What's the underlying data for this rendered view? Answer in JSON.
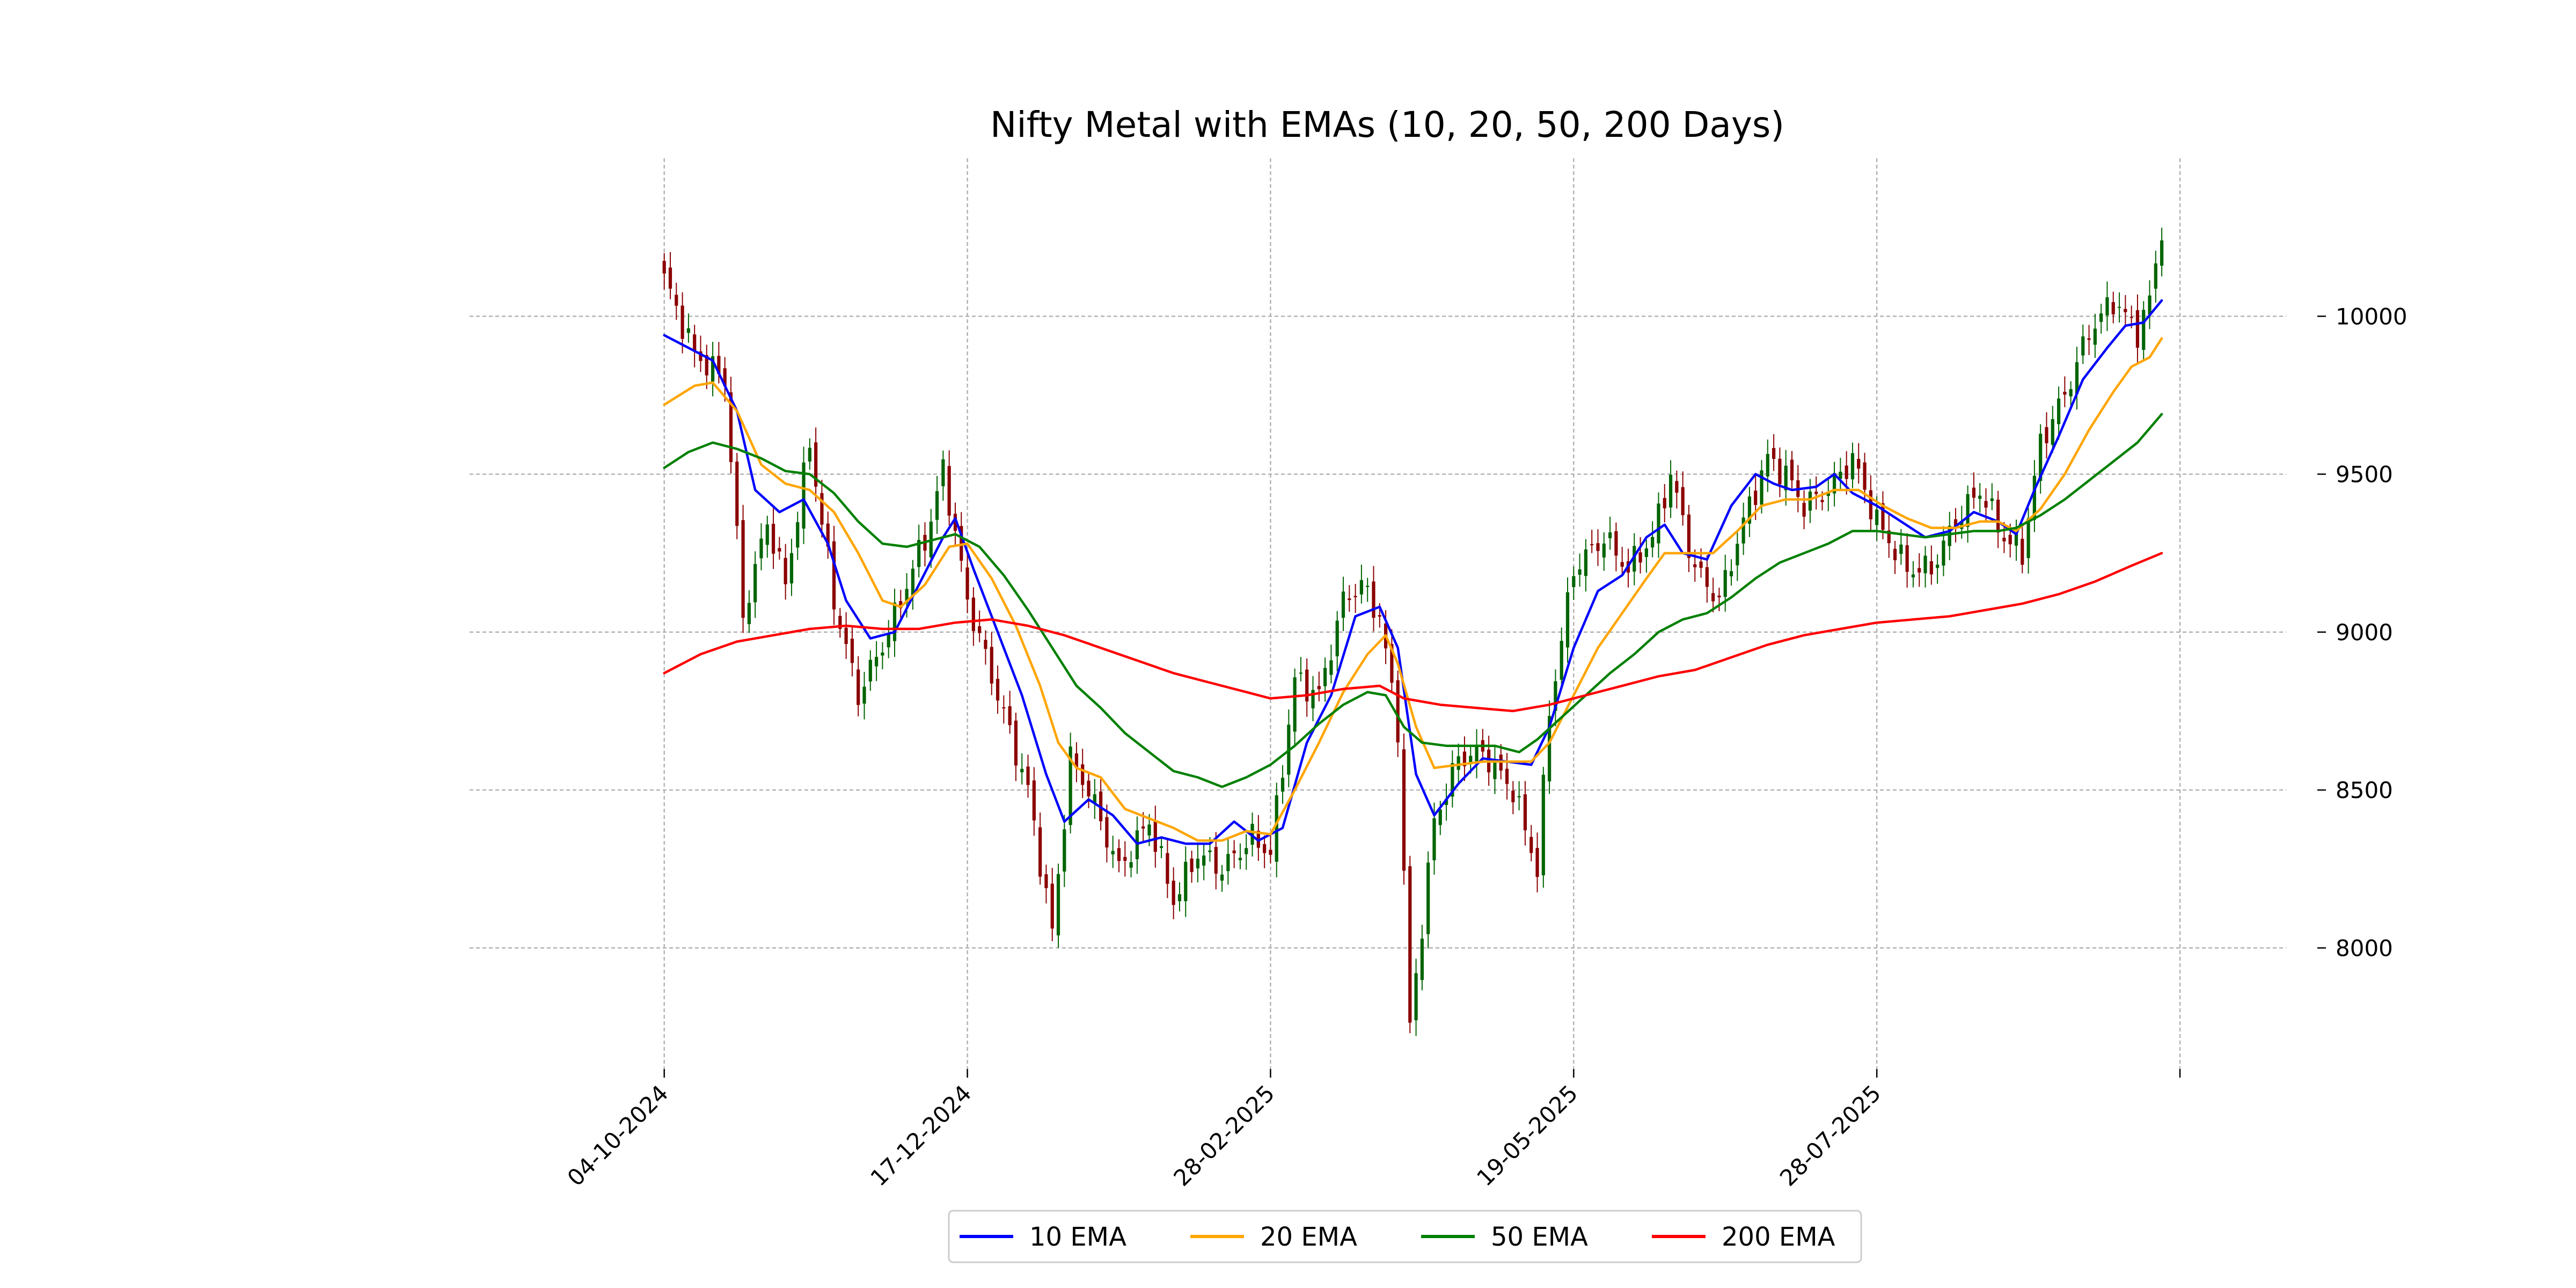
{
  "chart_data": {
    "type": "candlestick",
    "title": "Nifty Metal with EMAs (10, 20, 50, 200 Days)",
    "xlabel": "",
    "ylabel": "",
    "ylim": [
      7620,
      10500
    ],
    "y_ticks": [
      8000,
      8500,
      9000,
      9500,
      10000
    ],
    "y_tick_labels": [
      "8000",
      "8500",
      "9000",
      "9500",
      "10000"
    ],
    "x_ticks": [
      {
        "index": 0,
        "label": "04-10-2024"
      },
      {
        "index": 50,
        "label": "17-12-2024"
      },
      {
        "index": 100,
        "label": "28-02-2025"
      },
      {
        "index": 150,
        "label": "19-05-2025"
      },
      {
        "index": 200,
        "label": "28-07-2025"
      },
      {
        "index": 250,
        "label": ""
      }
    ],
    "grid": true,
    "legend_position": "bottom-center",
    "candle_colors": {
      "up": "#006400",
      "down": "#8b0000"
    },
    "candle_anchors": [
      [
        0,
        10120
      ],
      [
        5,
        9880
      ],
      [
        10,
        9800
      ],
      [
        13,
        9050
      ],
      [
        17,
        9350
      ],
      [
        20,
        9150
      ],
      [
        24,
        9600
      ],
      [
        28,
        9100
      ],
      [
        32,
        8800
      ],
      [
        37,
        9000
      ],
      [
        40,
        9150
      ],
      [
        44,
        9350
      ],
      [
        46,
        9520
      ],
      [
        50,
        9100
      ],
      [
        55,
        8800
      ],
      [
        60,
        8500
      ],
      [
        64,
        8050
      ],
      [
        67,
        8600
      ],
      [
        70,
        8500
      ],
      [
        75,
        8250
      ],
      [
        80,
        8400
      ],
      [
        84,
        8150
      ],
      [
        88,
        8300
      ],
      [
        92,
        8250
      ],
      [
        97,
        8350
      ],
      [
        100,
        8300
      ],
      [
        104,
        8850
      ],
      [
        108,
        8800
      ],
      [
        112,
        9100
      ],
      [
        115,
        9150
      ],
      [
        118,
        9050
      ],
      [
        121,
        8700
      ],
      [
        123,
        7750
      ],
      [
        127,
        8400
      ],
      [
        131,
        8600
      ],
      [
        135,
        8620
      ],
      [
        140,
        8500
      ],
      [
        144,
        8250
      ],
      [
        146,
        8750
      ],
      [
        150,
        9200
      ],
      [
        155,
        9300
      ],
      [
        159,
        9200
      ],
      [
        163,
        9300
      ],
      [
        166,
        9500
      ],
      [
        170,
        9200
      ],
      [
        174,
        9100
      ],
      [
        178,
        9350
      ],
      [
        182,
        9550
      ],
      [
        185,
        9500
      ],
      [
        188,
        9400
      ],
      [
        192,
        9450
      ],
      [
        196,
        9550
      ],
      [
        200,
        9350
      ],
      [
        205,
        9200
      ],
      [
        209,
        9200
      ],
      [
        213,
        9350
      ],
      [
        217,
        9450
      ],
      [
        221,
        9300
      ],
      [
        224,
        9250
      ],
      [
        227,
        9600
      ],
      [
        231,
        9750
      ],
      [
        235,
        9950
      ],
      [
        239,
        10050
      ],
      [
        243,
        9950
      ],
      [
        245,
        10050
      ],
      [
        247,
        10280
      ]
    ],
    "series": [
      {
        "name": "10 EMA",
        "color": "#0000ff",
        "points": [
          [
            0,
            9940
          ],
          [
            5,
            9890
          ],
          [
            8,
            9860
          ],
          [
            12,
            9700
          ],
          [
            15,
            9450
          ],
          [
            19,
            9380
          ],
          [
            23,
            9420
          ],
          [
            27,
            9280
          ],
          [
            30,
            9100
          ],
          [
            34,
            8980
          ],
          [
            38,
            9000
          ],
          [
            42,
            9150
          ],
          [
            46,
            9300
          ],
          [
            48,
            9360
          ],
          [
            51,
            9200
          ],
          [
            55,
            9000
          ],
          [
            59,
            8800
          ],
          [
            63,
            8550
          ],
          [
            66,
            8400
          ],
          [
            70,
            8470
          ],
          [
            74,
            8420
          ],
          [
            78,
            8330
          ],
          [
            82,
            8350
          ],
          [
            86,
            8330
          ],
          [
            90,
            8330
          ],
          [
            94,
            8400
          ],
          [
            98,
            8340
          ],
          [
            102,
            8380
          ],
          [
            106,
            8650
          ],
          [
            110,
            8800
          ],
          [
            114,
            9050
          ],
          [
            118,
            9080
          ],
          [
            121,
            8950
          ],
          [
            124,
            8550
          ],
          [
            127,
            8420
          ],
          [
            131,
            8520
          ],
          [
            135,
            8600
          ],
          [
            139,
            8590
          ],
          [
            143,
            8580
          ],
          [
            146,
            8700
          ],
          [
            150,
            8950
          ],
          [
            154,
            9130
          ],
          [
            158,
            9180
          ],
          [
            162,
            9300
          ],
          [
            165,
            9340
          ],
          [
            168,
            9250
          ],
          [
            172,
            9230
          ],
          [
            176,
            9400
          ],
          [
            180,
            9500
          ],
          [
            183,
            9470
          ],
          [
            186,
            9450
          ],
          [
            190,
            9460
          ],
          [
            193,
            9500
          ],
          [
            196,
            9440
          ],
          [
            200,
            9400
          ],
          [
            204,
            9350
          ],
          [
            208,
            9300
          ],
          [
            212,
            9320
          ],
          [
            216,
            9380
          ],
          [
            220,
            9350
          ],
          [
            223,
            9310
          ],
          [
            226,
            9450
          ],
          [
            230,
            9620
          ],
          [
            234,
            9800
          ],
          [
            238,
            9900
          ],
          [
            241,
            9970
          ],
          [
            244,
            9980
          ],
          [
            247,
            10050
          ]
        ]
      },
      {
        "name": "20 EMA",
        "color": "#ffa500",
        "points": [
          [
            0,
            9720
          ],
          [
            5,
            9780
          ],
          [
            8,
            9790
          ],
          [
            12,
            9700
          ],
          [
            16,
            9530
          ],
          [
            20,
            9470
          ],
          [
            24,
            9450
          ],
          [
            28,
            9380
          ],
          [
            32,
            9250
          ],
          [
            36,
            9100
          ],
          [
            39,
            9080
          ],
          [
            43,
            9150
          ],
          [
            47,
            9270
          ],
          [
            50,
            9280
          ],
          [
            54,
            9170
          ],
          [
            58,
            9020
          ],
          [
            62,
            8830
          ],
          [
            65,
            8650
          ],
          [
            68,
            8570
          ],
          [
            72,
            8540
          ],
          [
            76,
            8440
          ],
          [
            80,
            8410
          ],
          [
            84,
            8380
          ],
          [
            88,
            8340
          ],
          [
            92,
            8340
          ],
          [
            96,
            8370
          ],
          [
            100,
            8360
          ],
          [
            104,
            8500
          ],
          [
            108,
            8650
          ],
          [
            112,
            8810
          ],
          [
            116,
            8930
          ],
          [
            119,
            8990
          ],
          [
            121,
            8900
          ],
          [
            124,
            8700
          ],
          [
            127,
            8570
          ],
          [
            131,
            8580
          ],
          [
            135,
            8590
          ],
          [
            139,
            8590
          ],
          [
            143,
            8590
          ],
          [
            146,
            8650
          ],
          [
            150,
            8800
          ],
          [
            154,
            8950
          ],
          [
            158,
            9060
          ],
          [
            162,
            9170
          ],
          [
            165,
            9250
          ],
          [
            169,
            9250
          ],
          [
            173,
            9250
          ],
          [
            177,
            9320
          ],
          [
            181,
            9400
          ],
          [
            185,
            9420
          ],
          [
            189,
            9420
          ],
          [
            193,
            9450
          ],
          [
            197,
            9450
          ],
          [
            201,
            9400
          ],
          [
            205,
            9360
          ],
          [
            209,
            9330
          ],
          [
            213,
            9330
          ],
          [
            217,
            9350
          ],
          [
            220,
            9350
          ],
          [
            223,
            9320
          ],
          [
            227,
            9390
          ],
          [
            231,
            9500
          ],
          [
            235,
            9640
          ],
          [
            239,
            9760
          ],
          [
            242,
            9840
          ],
          [
            245,
            9870
          ],
          [
            247,
            9930
          ]
        ]
      },
      {
        "name": "50 EMA",
        "color": "#008000",
        "points": [
          [
            0,
            9520
          ],
          [
            4,
            9570
          ],
          [
            8,
            9600
          ],
          [
            12,
            9580
          ],
          [
            16,
            9550
          ],
          [
            20,
            9510
          ],
          [
            24,
            9500
          ],
          [
            28,
            9440
          ],
          [
            32,
            9350
          ],
          [
            36,
            9280
          ],
          [
            40,
            9270
          ],
          [
            44,
            9290
          ],
          [
            48,
            9310
          ],
          [
            52,
            9270
          ],
          [
            56,
            9180
          ],
          [
            60,
            9070
          ],
          [
            64,
            8950
          ],
          [
            68,
            8830
          ],
          [
            72,
            8760
          ],
          [
            76,
            8680
          ],
          [
            80,
            8620
          ],
          [
            84,
            8560
          ],
          [
            88,
            8540
          ],
          [
            92,
            8510
          ],
          [
            96,
            8540
          ],
          [
            100,
            8580
          ],
          [
            104,
            8640
          ],
          [
            108,
            8710
          ],
          [
            112,
            8770
          ],
          [
            116,
            8810
          ],
          [
            119,
            8800
          ],
          [
            122,
            8700
          ],
          [
            125,
            8650
          ],
          [
            129,
            8640
          ],
          [
            133,
            8640
          ],
          [
            137,
            8640
          ],
          [
            141,
            8620
          ],
          [
            144,
            8660
          ],
          [
            148,
            8730
          ],
          [
            152,
            8800
          ],
          [
            156,
            8870
          ],
          [
            160,
            8930
          ],
          [
            164,
            9000
          ],
          [
            168,
            9040
          ],
          [
            172,
            9060
          ],
          [
            176,
            9110
          ],
          [
            180,
            9170
          ],
          [
            184,
            9220
          ],
          [
            188,
            9250
          ],
          [
            192,
            9280
          ],
          [
            196,
            9320
          ],
          [
            200,
            9320
          ],
          [
            204,
            9310
          ],
          [
            208,
            9300
          ],
          [
            212,
            9310
          ],
          [
            216,
            9320
          ],
          [
            220,
            9320
          ],
          [
            223,
            9330
          ],
          [
            227,
            9370
          ],
          [
            231,
            9420
          ],
          [
            235,
            9480
          ],
          [
            239,
            9540
          ],
          [
            243,
            9600
          ],
          [
            247,
            9690
          ]
        ]
      },
      {
        "name": "200 EMA",
        "color": "#ff0000",
        "points": [
          [
            0,
            8870
          ],
          [
            6,
            8930
          ],
          [
            12,
            8970
          ],
          [
            18,
            8990
          ],
          [
            24,
            9010
          ],
          [
            30,
            9020
          ],
          [
            36,
            9010
          ],
          [
            42,
            9010
          ],
          [
            48,
            9030
          ],
          [
            54,
            9040
          ],
          [
            60,
            9020
          ],
          [
            66,
            8990
          ],
          [
            72,
            8950
          ],
          [
            78,
            8910
          ],
          [
            84,
            8870
          ],
          [
            90,
            8840
          ],
          [
            96,
            8810
          ],
          [
            100,
            8790
          ],
          [
            106,
            8800
          ],
          [
            112,
            8820
          ],
          [
            118,
            8830
          ],
          [
            122,
            8790
          ],
          [
            128,
            8770
          ],
          [
            134,
            8760
          ],
          [
            140,
            8750
          ],
          [
            146,
            8770
          ],
          [
            152,
            8800
          ],
          [
            158,
            8830
          ],
          [
            164,
            8860
          ],
          [
            170,
            8880
          ],
          [
            176,
            8920
          ],
          [
            182,
            8960
          ],
          [
            188,
            8990
          ],
          [
            194,
            9010
          ],
          [
            200,
            9030
          ],
          [
            206,
            9040
          ],
          [
            212,
            9050
          ],
          [
            218,
            9070
          ],
          [
            224,
            9090
          ],
          [
            230,
            9120
          ],
          [
            236,
            9160
          ],
          [
            242,
            9210
          ],
          [
            247,
            9250
          ]
        ]
      }
    ]
  }
}
